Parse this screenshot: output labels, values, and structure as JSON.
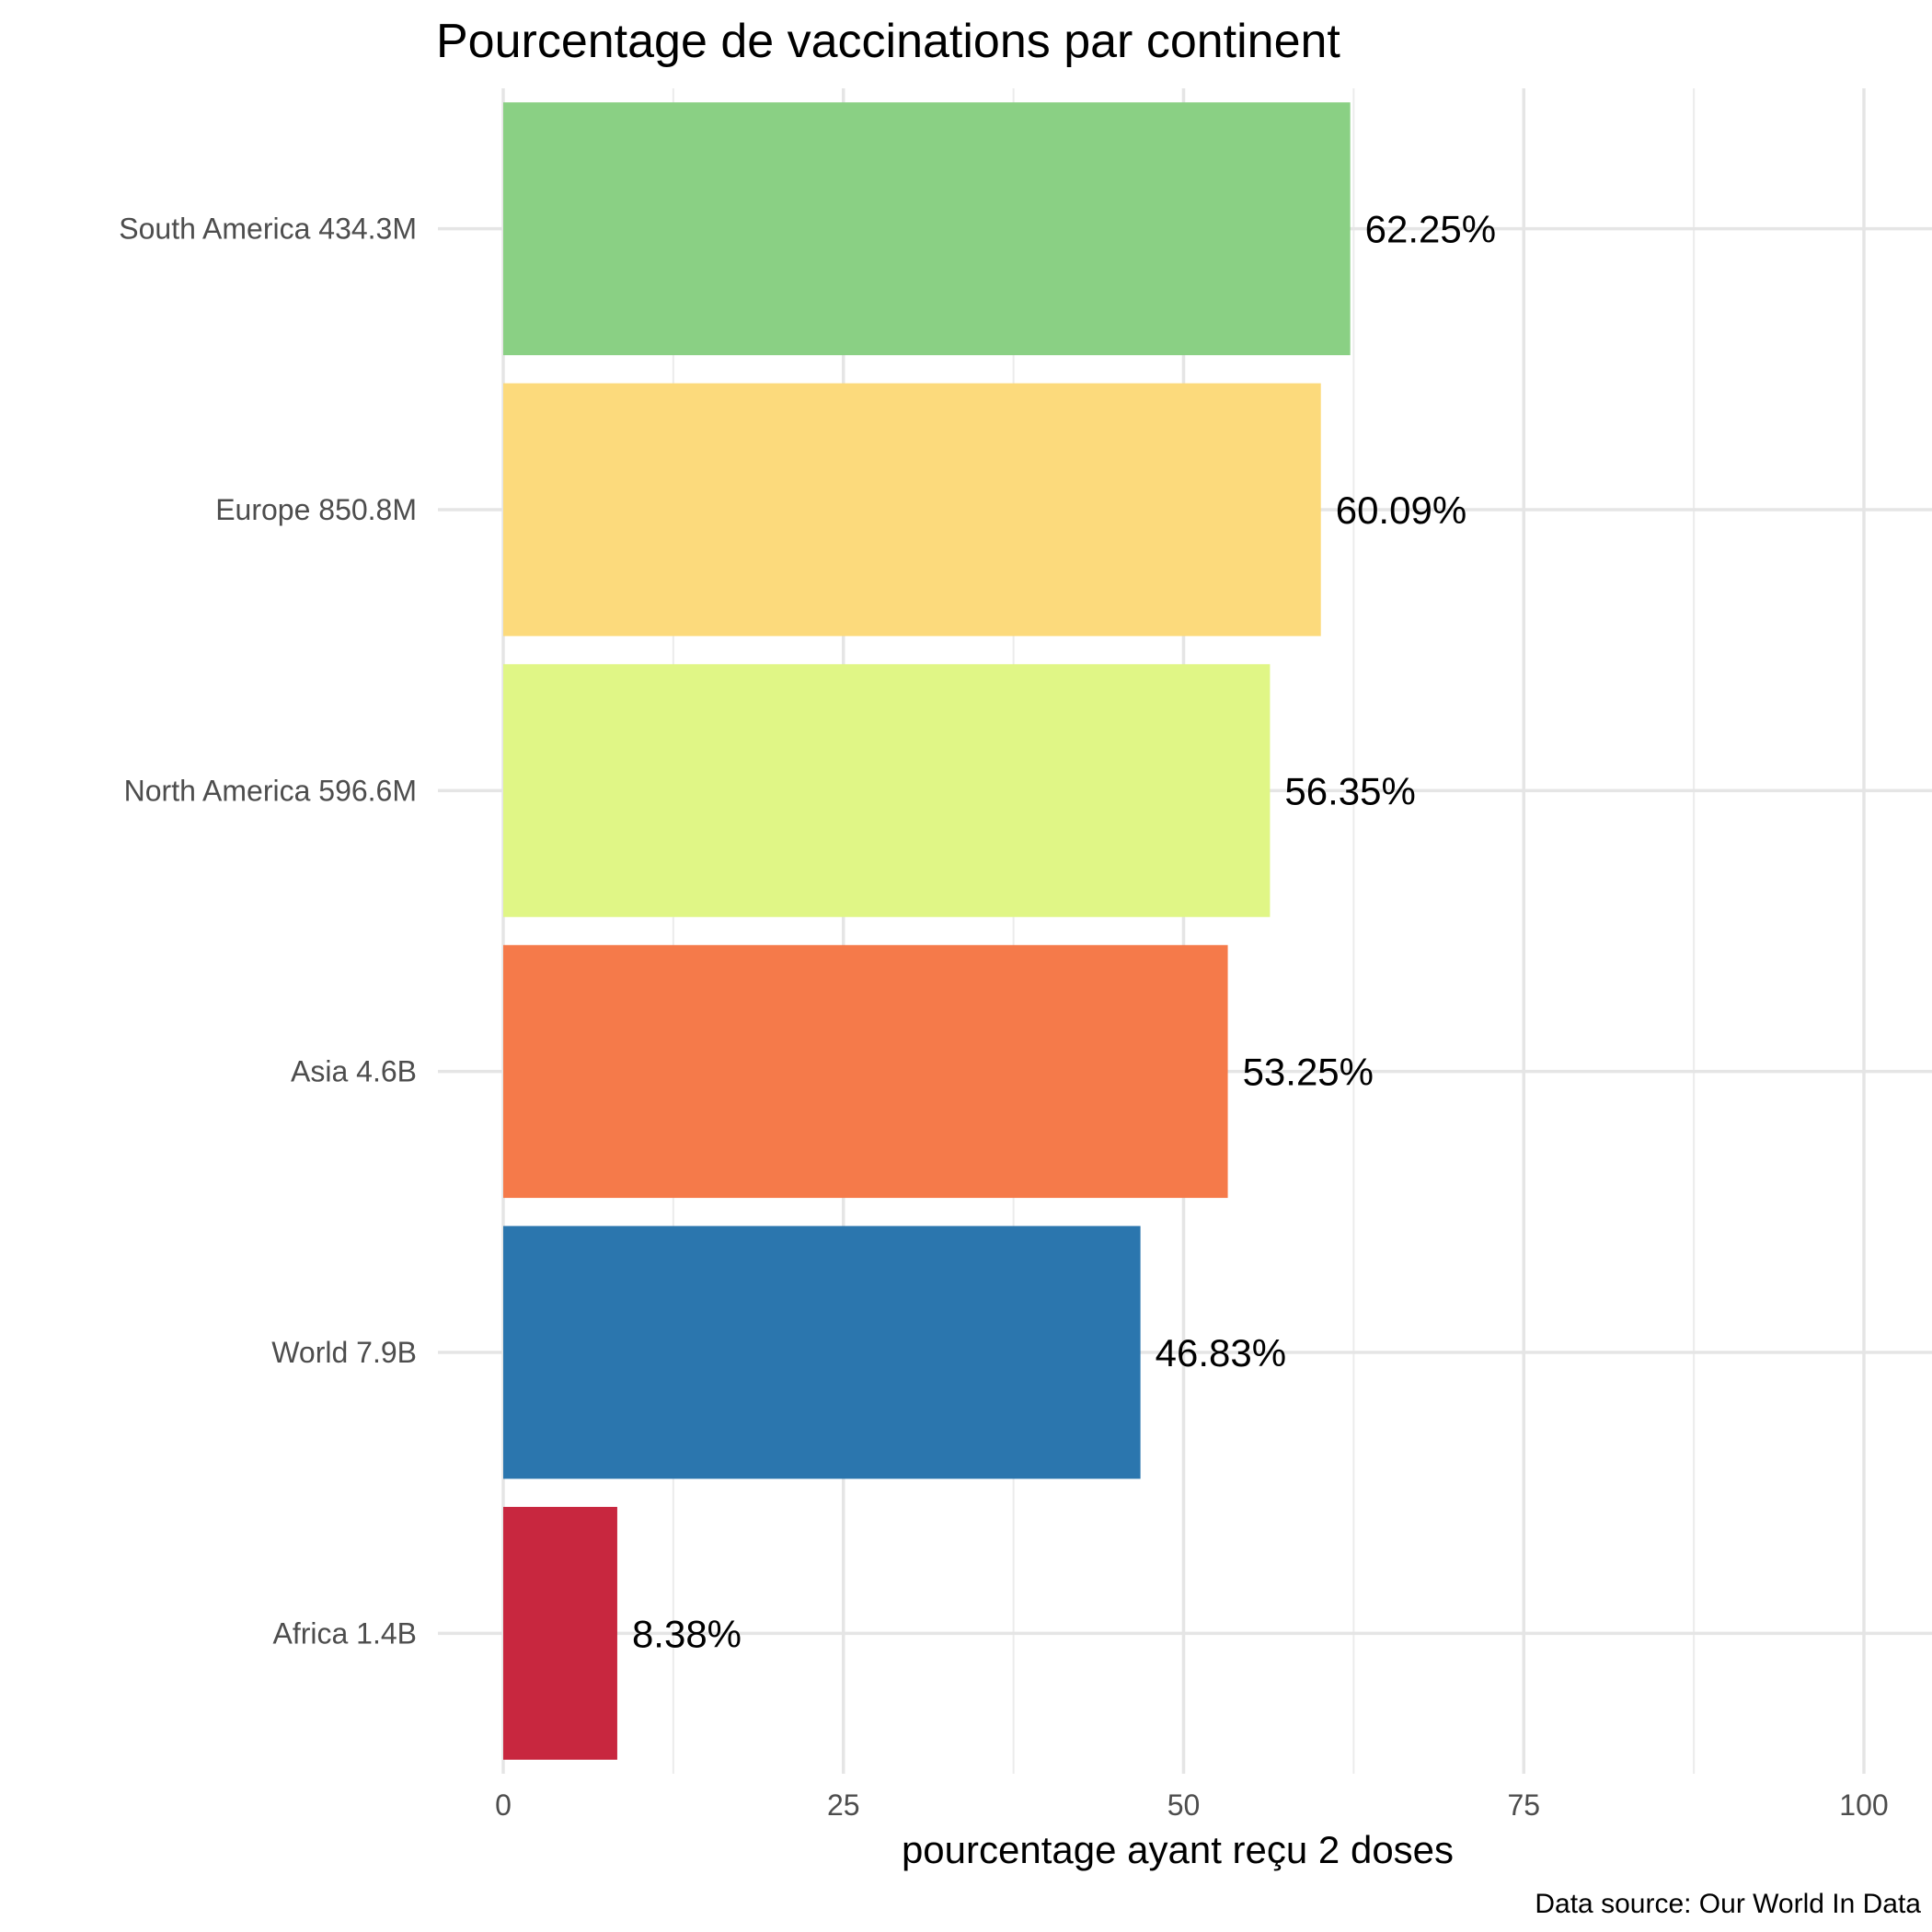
{
  "chart_data": {
    "type": "bar",
    "orientation": "horizontal",
    "title": "Pourcentage de vaccinations par continent",
    "xlabel": "pourcentage ayant reçu 2 doses",
    "ylabel": "",
    "caption": "Data source: Our World In Data",
    "xlim": [
      0,
      100
    ],
    "xticks": [
      "0",
      "25",
      "50",
      "75",
      "100"
    ],
    "xtick_values": [
      0,
      25,
      50,
      75,
      100
    ],
    "grid": true,
    "legend": "none",
    "categories": [
      "South America 434.3M",
      "Europe 850.8M",
      "North America 596.6M",
      "Asia 4.6B",
      "World 7.9B",
      "Africa 1.4B"
    ],
    "values": [
      62.25,
      60.09,
      56.35,
      53.25,
      46.83,
      8.38
    ],
    "value_labels": [
      "62.25%",
      "60.09%",
      "56.35%",
      "53.25%",
      "46.83%",
      "8.38%"
    ],
    "colors": [
      "#8ad084",
      "#fcda7c",
      "#e0f686",
      "#f57a4a",
      "#2b76ae",
      "#c8273f"
    ]
  }
}
